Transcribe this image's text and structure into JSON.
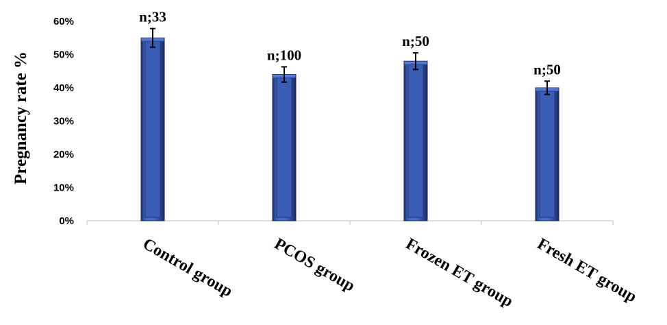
{
  "chart_data": {
    "type": "bar",
    "title": "",
    "xlabel": "",
    "ylabel": "Pregnancy rate %",
    "categories": [
      "Control group",
      "PCOS group",
      "Frozen ET group",
      "Fresh ET group"
    ],
    "values": [
      55,
      44,
      48,
      40
    ],
    "error": [
      2.8,
      2.3,
      2.5,
      2.0
    ],
    "data_labels": [
      "n;33",
      "n;100",
      "n;50",
      "n;50"
    ],
    "ylim": [
      0,
      60
    ],
    "yticks": [
      0,
      10,
      20,
      30,
      40,
      50,
      60
    ],
    "ytick_labels": [
      "0%",
      "10%",
      "20%",
      "30%",
      "40%",
      "50%",
      "60%"
    ],
    "grid": false,
    "legend": "none",
    "bar_color": "#2f4f9a"
  }
}
